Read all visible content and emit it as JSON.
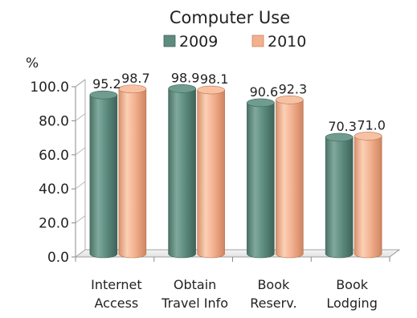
{
  "chart_data": {
    "type": "bar",
    "title": "Computer Use",
    "unit_label": "%",
    "categories": [
      [
        "Internet",
        "Access"
      ],
      [
        "Obtain",
        "Travel Info"
      ],
      [
        "Book",
        "Reserv."
      ],
      [
        "Book",
        "Lodging"
      ]
    ],
    "series": [
      {
        "name": "2009",
        "values": [
          95.2,
          98.9,
          90.6,
          70.3
        ],
        "color": "#5e8c7f"
      },
      {
        "name": "2010",
        "values": [
          98.7,
          98.1,
          92.3,
          71.0
        ],
        "color": "#f2b08e"
      }
    ],
    "y_ticks": [
      "0.0",
      "20.0",
      "40.0",
      "60.0",
      "80.0",
      "100.0"
    ],
    "ylim": [
      0,
      100
    ],
    "legend_position": "top",
    "grid": false,
    "style": "3d-cylinder"
  }
}
